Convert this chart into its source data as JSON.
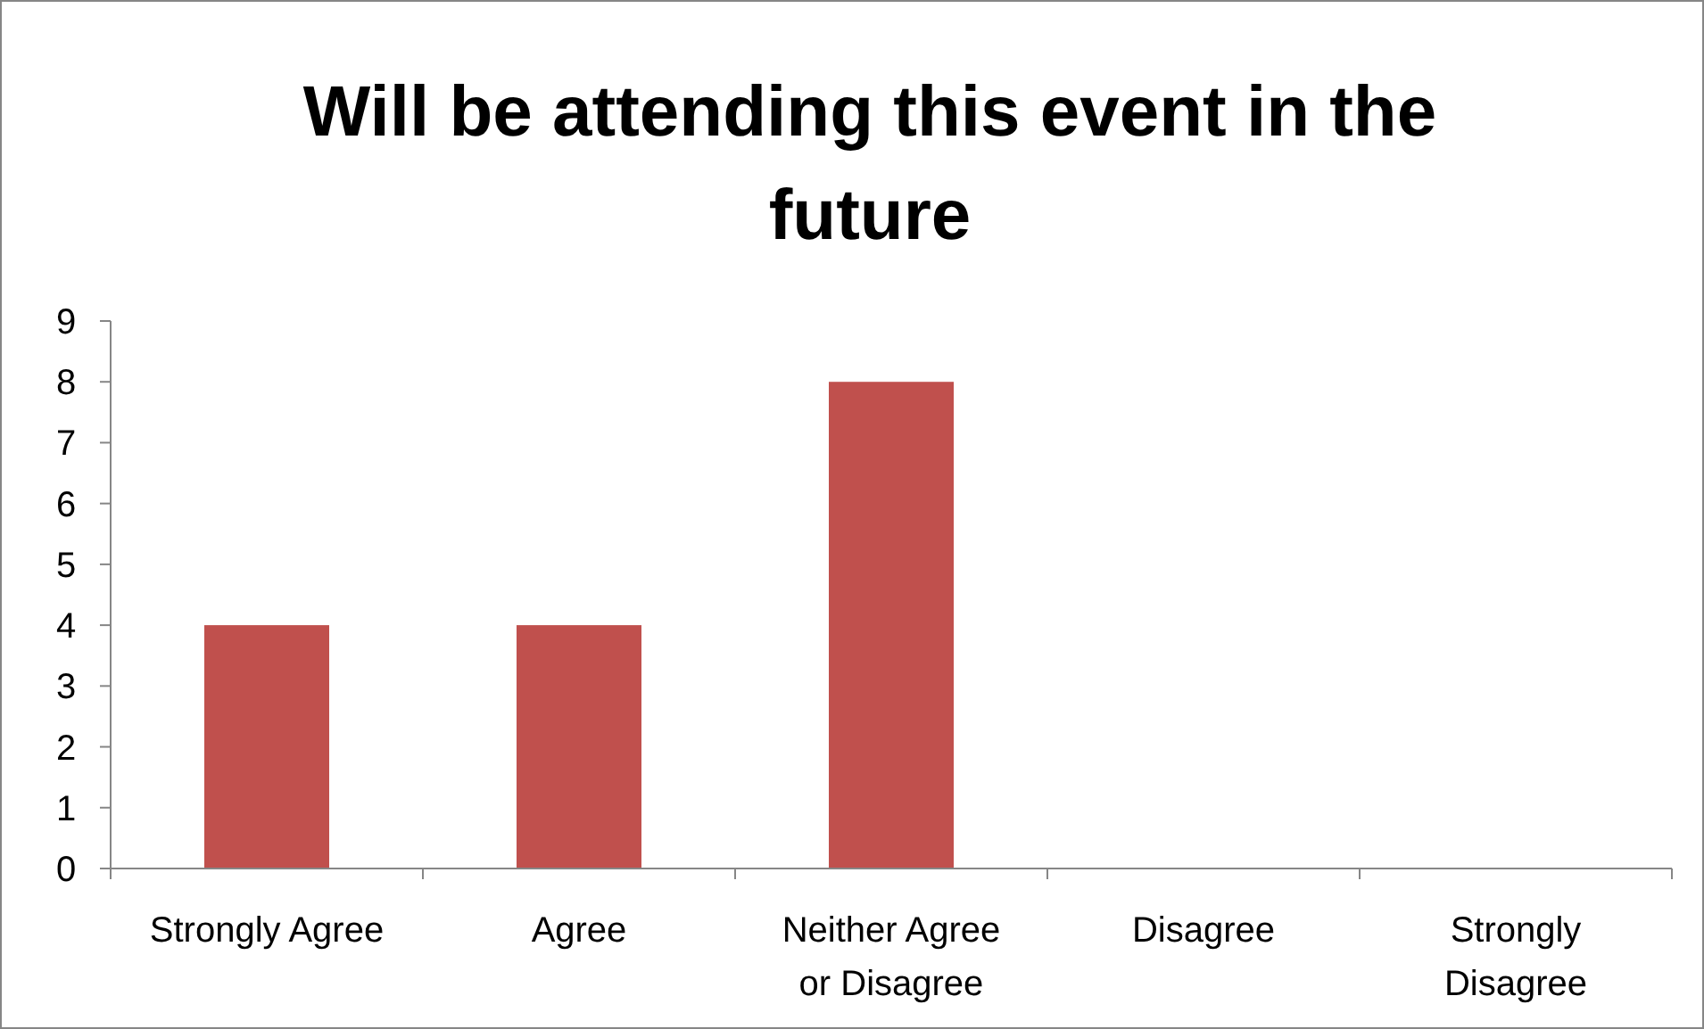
{
  "chart_data": {
    "type": "bar",
    "title": "Will be attending this event in the future",
    "categories": [
      "Strongly Agree",
      "Agree",
      "Neither Agree or Disagree",
      "Disagree",
      "Strongly Disagree"
    ],
    "values": [
      4,
      4,
      8,
      0,
      0
    ],
    "color": "#c0504d",
    "ylim": [
      0,
      9
    ],
    "yticks": [
      0,
      1,
      2,
      3,
      4,
      5,
      6,
      7,
      8,
      9
    ],
    "grid": false
  }
}
